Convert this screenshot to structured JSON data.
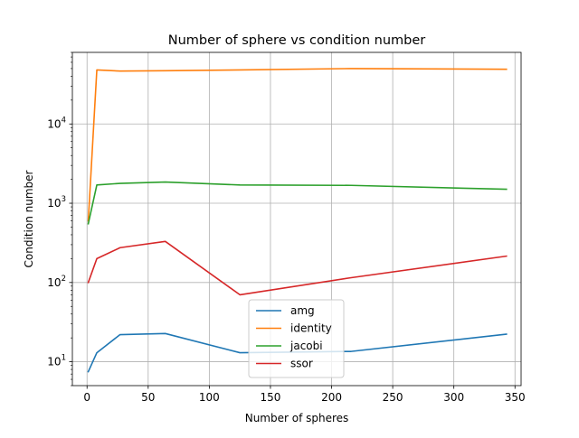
{
  "chart_data": {
    "type": "line",
    "title": "Number of sphere vs condition number",
    "xlabel": "Number of spheres",
    "ylabel": "Condition number",
    "x": [
      1,
      8,
      27,
      64,
      125,
      216,
      343
    ],
    "xlim": [
      -12,
      355
    ],
    "xticks": [
      0,
      50,
      100,
      150,
      200,
      250,
      300,
      350
    ],
    "ylog": true,
    "ylim": [
      5,
      80000
    ],
    "yticks": [
      {
        "value": 10,
        "base": "10",
        "exp": "1"
      },
      {
        "value": 100,
        "base": "10",
        "exp": "2"
      },
      {
        "value": 1000,
        "base": "10",
        "exp": "3"
      },
      {
        "value": 10000,
        "base": "10",
        "exp": "4"
      }
    ],
    "grid": true,
    "legend_position": "lower-center",
    "series": [
      {
        "name": "amg",
        "color": "#1f77b4",
        "values": [
          7.5,
          13,
          22,
          22.7,
          13,
          13.5,
          22.3
        ]
      },
      {
        "name": "identity",
        "color": "#ff7f0e",
        "values": [
          600,
          48000,
          46500,
          47000,
          48000,
          50000,
          49000
        ]
      },
      {
        "name": "jacobi",
        "color": "#2ca02c",
        "values": [
          550,
          1700,
          1780,
          1850,
          1700,
          1680,
          1500
        ]
      },
      {
        "name": "ssor",
        "color": "#d62728",
        "values": [
          100,
          200,
          275,
          330,
          70,
          115,
          215
        ]
      }
    ]
  }
}
